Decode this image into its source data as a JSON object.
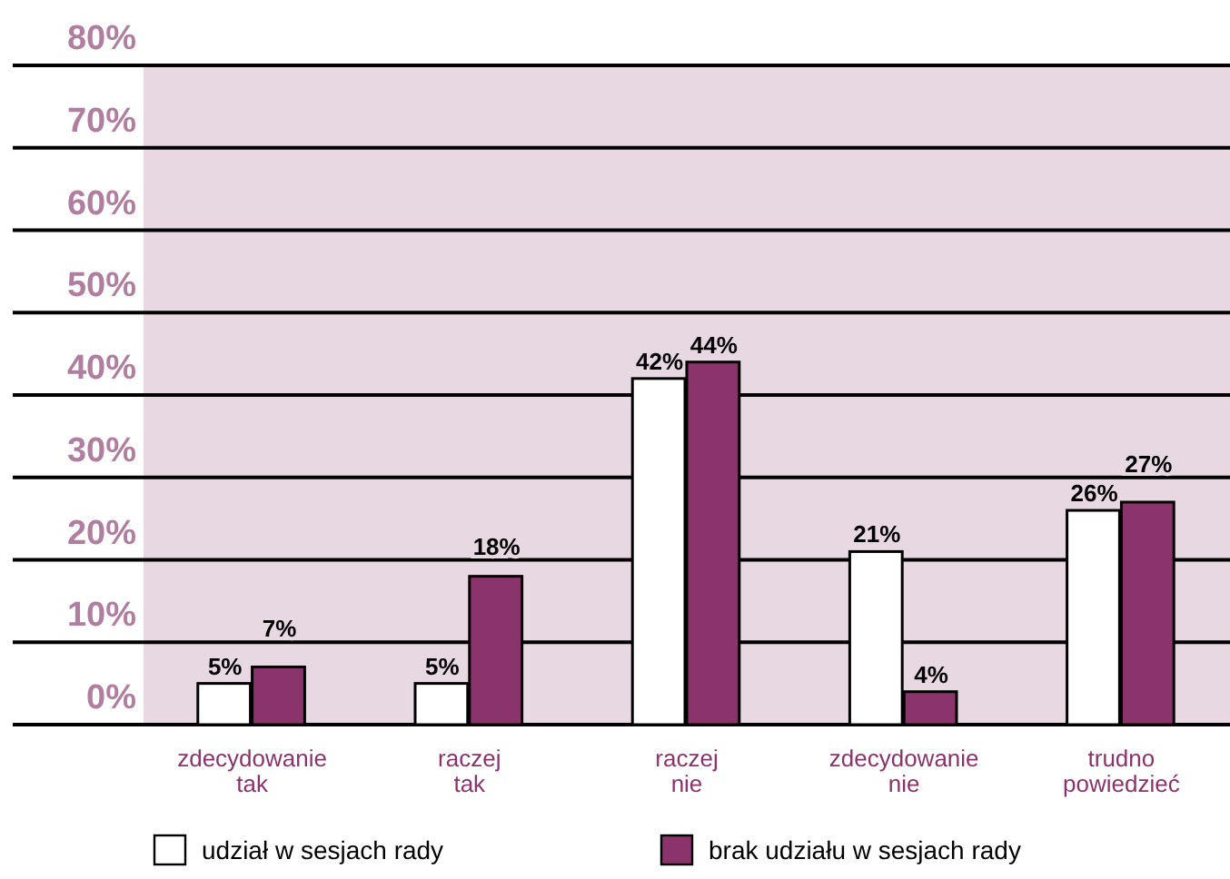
{
  "chart_data": {
    "type": "bar",
    "categories": [
      "zdecydowanie tak",
      "raczej tak",
      "raczej nie",
      "zdecydowanie nie",
      "trudno powiedzieć"
    ],
    "series": [
      {
        "name": "udział w sesjach rady",
        "color": "#ffffff",
        "values": [
          5,
          5,
          42,
          21,
          26
        ],
        "value_labels": [
          "5%",
          "5%",
          "42%",
          "21%",
          "26%"
        ]
      },
      {
        "name": "brak udziału w sesjach rady",
        "color": "#8b336b",
        "values": [
          7,
          18,
          44,
          4,
          27
        ],
        "value_labels": [
          "7%",
          "18%",
          "44%",
          "4%",
          "27%"
        ]
      }
    ],
    "ylim": [
      0,
      80
    ],
    "yticks": [
      {
        "value": 0,
        "label": "0%"
      },
      {
        "value": 10,
        "label": "10%"
      },
      {
        "value": 20,
        "label": "20%"
      },
      {
        "value": 30,
        "label": "30%"
      },
      {
        "value": 40,
        "label": "40%"
      },
      {
        "value": 50,
        "label": "50%"
      },
      {
        "value": 60,
        "label": "60%"
      },
      {
        "value": 70,
        "label": "70%"
      },
      {
        "value": 80,
        "label": "80%"
      }
    ],
    "bands": [
      {
        "axis": "y",
        "from": 0,
        "to": 80,
        "color": "#e8d8e2"
      }
    ],
    "grid": "y",
    "legend": "bottom"
  }
}
